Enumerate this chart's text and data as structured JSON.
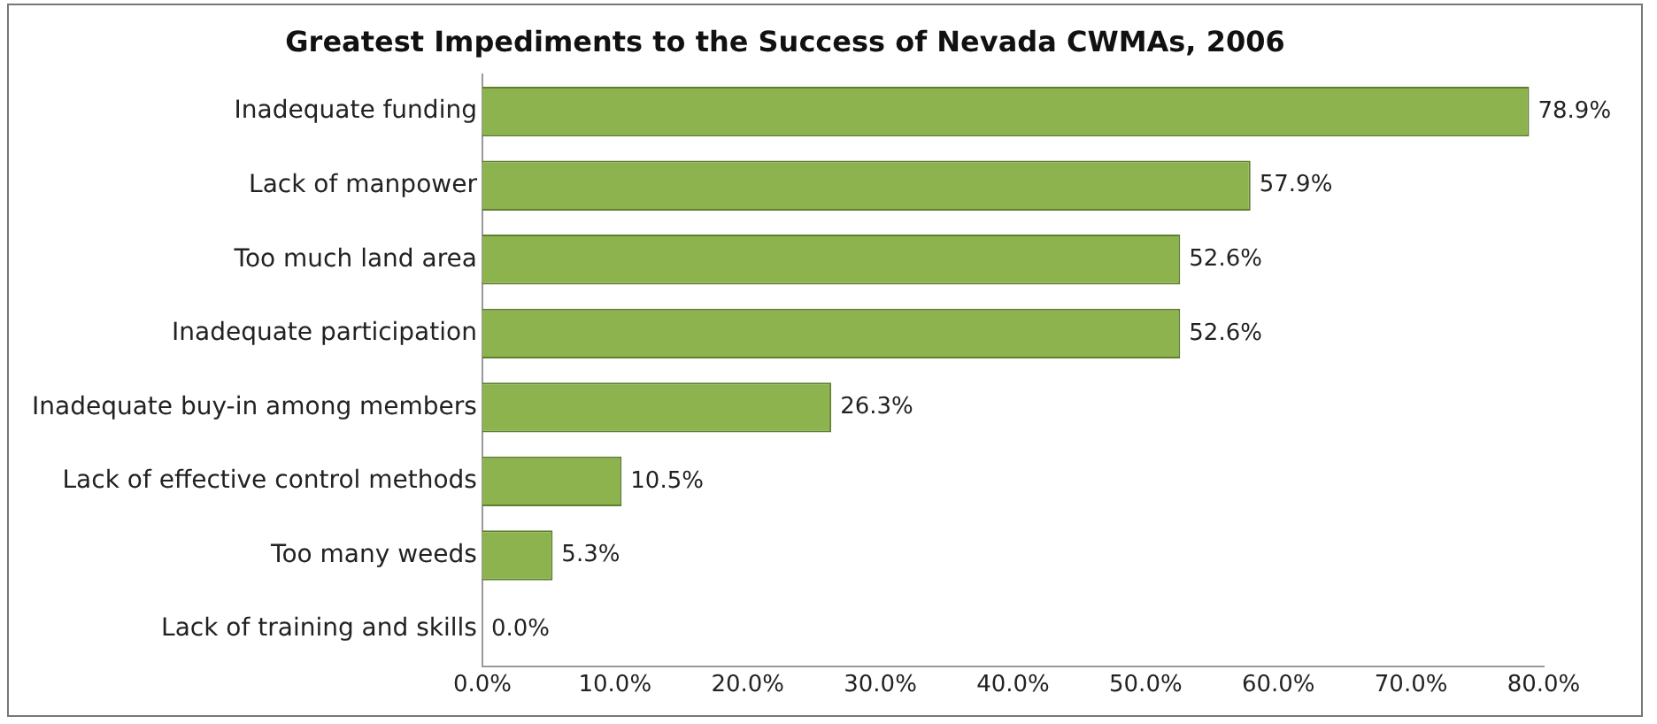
{
  "chart_data": {
    "type": "bar",
    "orientation": "horizontal",
    "title": "Greatest Impediments to the Success of Nevada CWMAs, 2006",
    "categories": [
      "Inadequate funding",
      "Lack of manpower",
      "Too much land area",
      "Inadequate participation",
      "Inadequate buy-in among members",
      "Lack of effective control methods",
      "Too many weeds",
      "Lack of training and skills"
    ],
    "values": [
      78.9,
      57.9,
      52.6,
      52.6,
      26.3,
      10.5,
      5.3,
      0.0
    ],
    "value_labels": [
      "78.9%",
      "57.9%",
      "52.6%",
      "52.6%",
      "26.3%",
      "10.5%",
      "5.3%",
      "0.0%"
    ],
    "color": "#8db34e",
    "xlim": [
      0,
      80
    ],
    "xticks": [
      {
        "value": 0,
        "label": "0.0%"
      },
      {
        "value": 10,
        "label": "10.0%"
      },
      {
        "value": 20,
        "label": "20.0%"
      },
      {
        "value": 30,
        "label": "30.0%"
      },
      {
        "value": 40,
        "label": "40.0%"
      },
      {
        "value": 50,
        "label": "50.0%"
      },
      {
        "value": 60,
        "label": "60.0%"
      },
      {
        "value": 70,
        "label": "70.0%"
      },
      {
        "value": 80,
        "label": "80.0%"
      }
    ],
    "grid": false,
    "legend": false
  }
}
